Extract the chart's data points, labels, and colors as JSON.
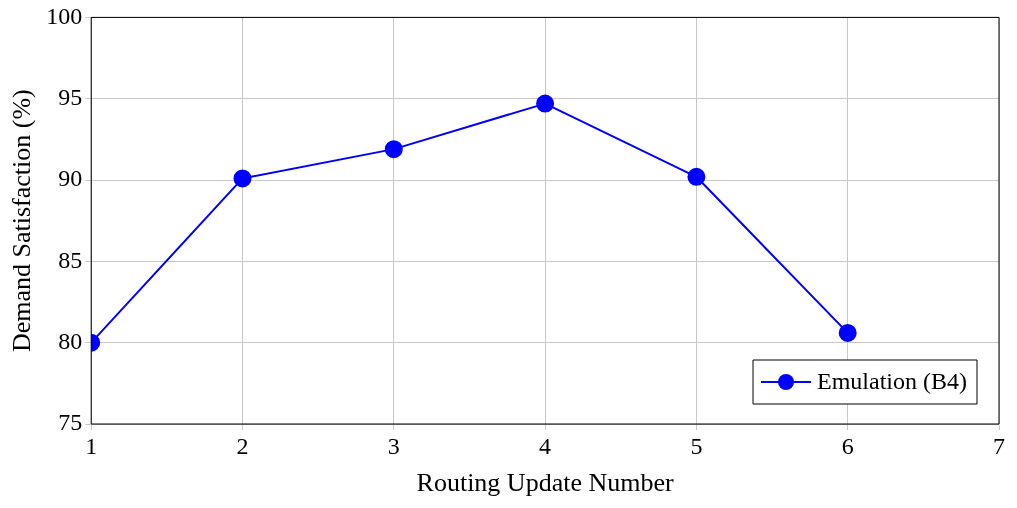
{
  "chart_data": {
    "type": "line",
    "xlabel": "Routing Update Number",
    "ylabel": "Demand Satisfaction (%)",
    "x": [
      1,
      2,
      3,
      4,
      5,
      6
    ],
    "series": [
      {
        "name": "Emulation (B4)",
        "color": "#0000ff",
        "values": [
          80,
          90.1,
          91.9,
          94.7,
          90.2,
          80.6
        ]
      }
    ],
    "xlim": [
      1,
      7
    ],
    "xticks": [
      1,
      2,
      3,
      4,
      5,
      6,
      7
    ],
    "ylim": [
      75,
      100
    ],
    "yticks": [
      75,
      80,
      85,
      90,
      95,
      100
    ],
    "grid": true,
    "legend": "bottom right",
    "marker": "circle",
    "line_style": "solid"
  }
}
